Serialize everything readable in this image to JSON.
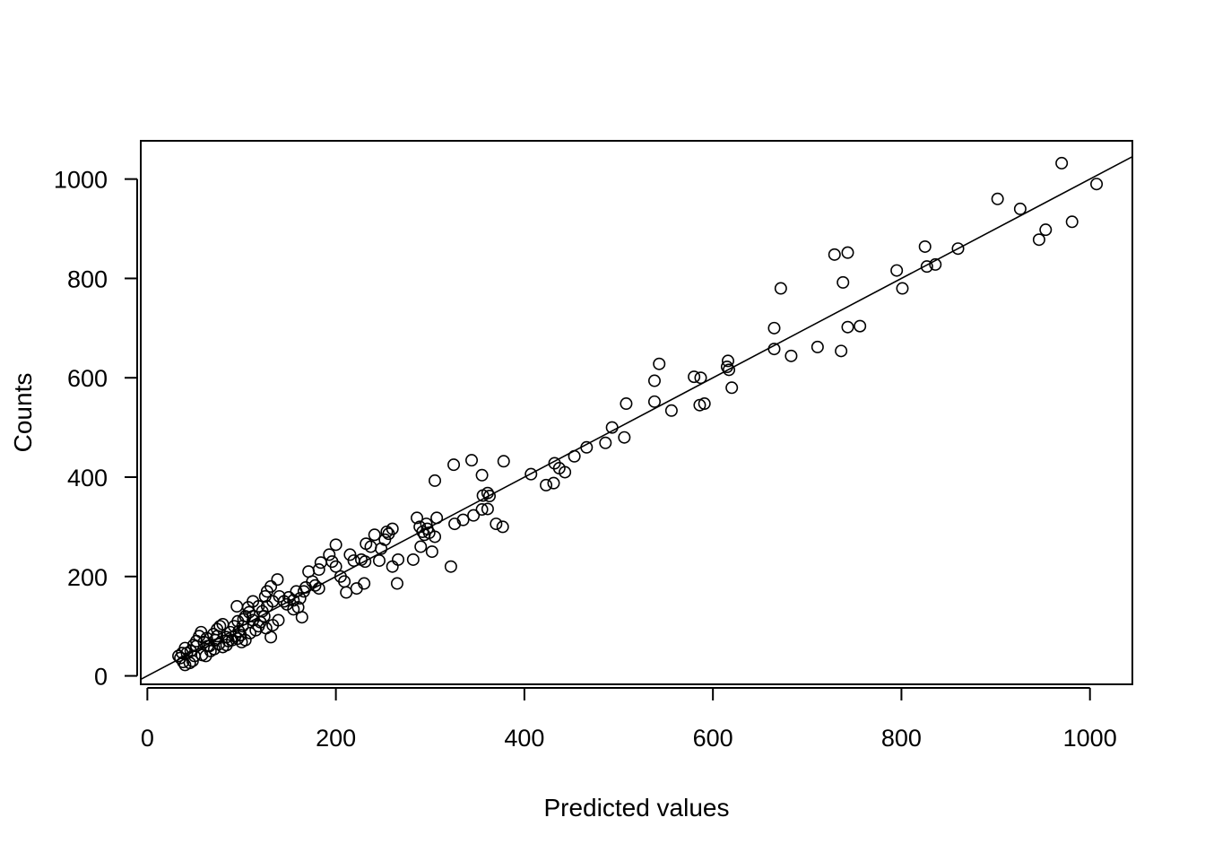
{
  "chart_data": {
    "type": "scatter",
    "title": "",
    "xlabel": "Predicted values",
    "ylabel": "Counts",
    "xlim": [
      -7,
      1045
    ],
    "ylim": [
      -17,
      1077
    ],
    "xticks": [
      0,
      200,
      400,
      600,
      800,
      1000
    ],
    "yticks": [
      0,
      200,
      400,
      600,
      800,
      1000
    ],
    "grid": false,
    "marker": "open-circle",
    "reference_line": {
      "intercept": 0,
      "slope": 1
    },
    "points": [
      [
        970,
        1032
      ],
      [
        1007,
        990
      ],
      [
        902,
        960
      ],
      [
        926,
        940
      ],
      [
        953,
        898
      ],
      [
        981,
        914
      ],
      [
        946,
        878
      ],
      [
        825,
        864
      ],
      [
        860,
        860
      ],
      [
        836,
        828
      ],
      [
        827,
        824
      ],
      [
        795,
        816
      ],
      [
        801,
        780
      ],
      [
        729,
        848
      ],
      [
        743,
        852
      ],
      [
        738,
        792
      ],
      [
        672,
        780
      ],
      [
        743,
        702
      ],
      [
        756,
        704
      ],
      [
        665,
        700
      ],
      [
        665,
        658
      ],
      [
        683,
        644
      ],
      [
        711,
        662
      ],
      [
        736,
        654
      ],
      [
        616,
        634
      ],
      [
        615,
        622
      ],
      [
        617,
        616
      ],
      [
        620,
        580
      ],
      [
        580,
        602
      ],
      [
        587,
        600
      ],
      [
        586,
        545
      ],
      [
        591,
        548
      ],
      [
        556,
        534
      ],
      [
        538,
        594
      ],
      [
        543,
        628
      ],
      [
        538,
        552
      ],
      [
        508,
        548
      ],
      [
        493,
        500
      ],
      [
        506,
        480
      ],
      [
        486,
        469
      ],
      [
        466,
        460
      ],
      [
        453,
        442
      ],
      [
        432,
        428
      ],
      [
        437,
        418
      ],
      [
        443,
        410
      ],
      [
        407,
        406
      ],
      [
        431,
        388
      ],
      [
        423,
        384
      ],
      [
        378,
        432
      ],
      [
        344,
        434
      ],
      [
        325,
        425
      ],
      [
        305,
        393
      ],
      [
        355,
        404
      ],
      [
        361,
        368
      ],
      [
        356,
        363
      ],
      [
        363,
        362
      ],
      [
        346,
        323
      ],
      [
        335,
        314
      ],
      [
        326,
        306
      ],
      [
        361,
        336
      ],
      [
        355,
        335
      ],
      [
        370,
        306
      ],
      [
        377,
        300
      ],
      [
        322,
        220
      ],
      [
        286,
        318
      ],
      [
        307,
        318
      ],
      [
        296,
        306
      ],
      [
        289,
        300
      ],
      [
        292,
        290
      ],
      [
        297,
        296
      ],
      [
        299,
        288
      ],
      [
        294,
        284
      ],
      [
        305,
        280
      ],
      [
        290,
        260
      ],
      [
        302,
        250
      ],
      [
        260,
        296
      ],
      [
        254,
        290
      ],
      [
        256,
        286
      ],
      [
        241,
        284
      ],
      [
        252,
        274
      ],
      [
        232,
        266
      ],
      [
        237,
        260
      ],
      [
        248,
        256
      ],
      [
        227,
        234
      ],
      [
        219,
        232
      ],
      [
        231,
        230
      ],
      [
        215,
        244
      ],
      [
        200,
        264
      ],
      [
        193,
        244
      ],
      [
        196,
        230
      ],
      [
        200,
        220
      ],
      [
        184,
        228
      ],
      [
        182,
        214
      ],
      [
        205,
        200
      ],
      [
        209,
        190
      ],
      [
        282,
        234
      ],
      [
        260,
        220
      ],
      [
        266,
        234
      ],
      [
        246,
        232
      ],
      [
        265,
        186
      ],
      [
        230,
        186
      ],
      [
        222,
        176
      ],
      [
        211,
        168
      ],
      [
        175,
        190
      ],
      [
        178,
        182
      ],
      [
        182,
        176
      ],
      [
        171,
        210
      ],
      [
        168,
        178
      ],
      [
        166,
        170
      ],
      [
        158,
        170
      ],
      [
        162,
        156
      ],
      [
        155,
        152
      ],
      [
        150,
        158
      ],
      [
        140,
        160
      ],
      [
        138,
        194
      ],
      [
        160,
        138
      ],
      [
        155,
        134
      ],
      [
        164,
        118
      ],
      [
        148,
        144
      ],
      [
        145,
        150
      ],
      [
        131,
        180
      ],
      [
        127,
        170
      ],
      [
        125,
        160
      ],
      [
        133,
        150
      ],
      [
        127,
        140
      ],
      [
        122,
        130
      ],
      [
        118,
        140
      ],
      [
        112,
        150
      ],
      [
        108,
        128
      ],
      [
        104,
        120
      ],
      [
        112,
        112
      ],
      [
        118,
        100
      ],
      [
        115,
        92
      ],
      [
        109,
        86
      ],
      [
        133,
        102
      ],
      [
        139,
        112
      ],
      [
        126,
        96
      ],
      [
        131,
        78
      ],
      [
        101,
        100
      ],
      [
        95,
        140
      ],
      [
        107,
        138
      ],
      [
        97,
        90
      ],
      [
        93,
        80
      ],
      [
        90,
        72
      ],
      [
        100,
        68
      ],
      [
        104,
        72
      ],
      [
        88,
        88
      ],
      [
        84,
        78
      ],
      [
        80,
        104
      ],
      [
        77,
        100
      ],
      [
        74,
        94
      ],
      [
        70,
        84
      ],
      [
        72,
        72
      ],
      [
        76,
        64
      ],
      [
        71,
        54
      ],
      [
        66,
        60
      ],
      [
        63,
        76
      ],
      [
        60,
        68
      ],
      [
        57,
        88
      ],
      [
        55,
        80
      ],
      [
        52,
        70
      ],
      [
        52,
        60
      ],
      [
        49,
        62
      ],
      [
        46,
        50
      ],
      [
        42,
        46
      ],
      [
        40,
        56
      ],
      [
        37,
        46
      ],
      [
        33,
        40
      ],
      [
        35,
        36
      ],
      [
        38,
        28
      ],
      [
        40,
        22
      ],
      [
        45,
        26
      ],
      [
        48,
        30
      ],
      [
        50,
        40
      ],
      [
        58,
        42
      ],
      [
        62,
        40
      ],
      [
        67,
        50
      ],
      [
        84,
        62
      ],
      [
        92,
        100
      ],
      [
        96,
        110
      ],
      [
        102,
        114
      ],
      [
        112,
        120
      ],
      [
        120,
        108
      ],
      [
        124,
        120
      ],
      [
        80,
        58
      ],
      [
        74,
        80
      ],
      [
        64,
        60
      ],
      [
        86,
        70
      ],
      [
        99,
        82
      ],
      [
        96,
        75
      ]
    ]
  }
}
